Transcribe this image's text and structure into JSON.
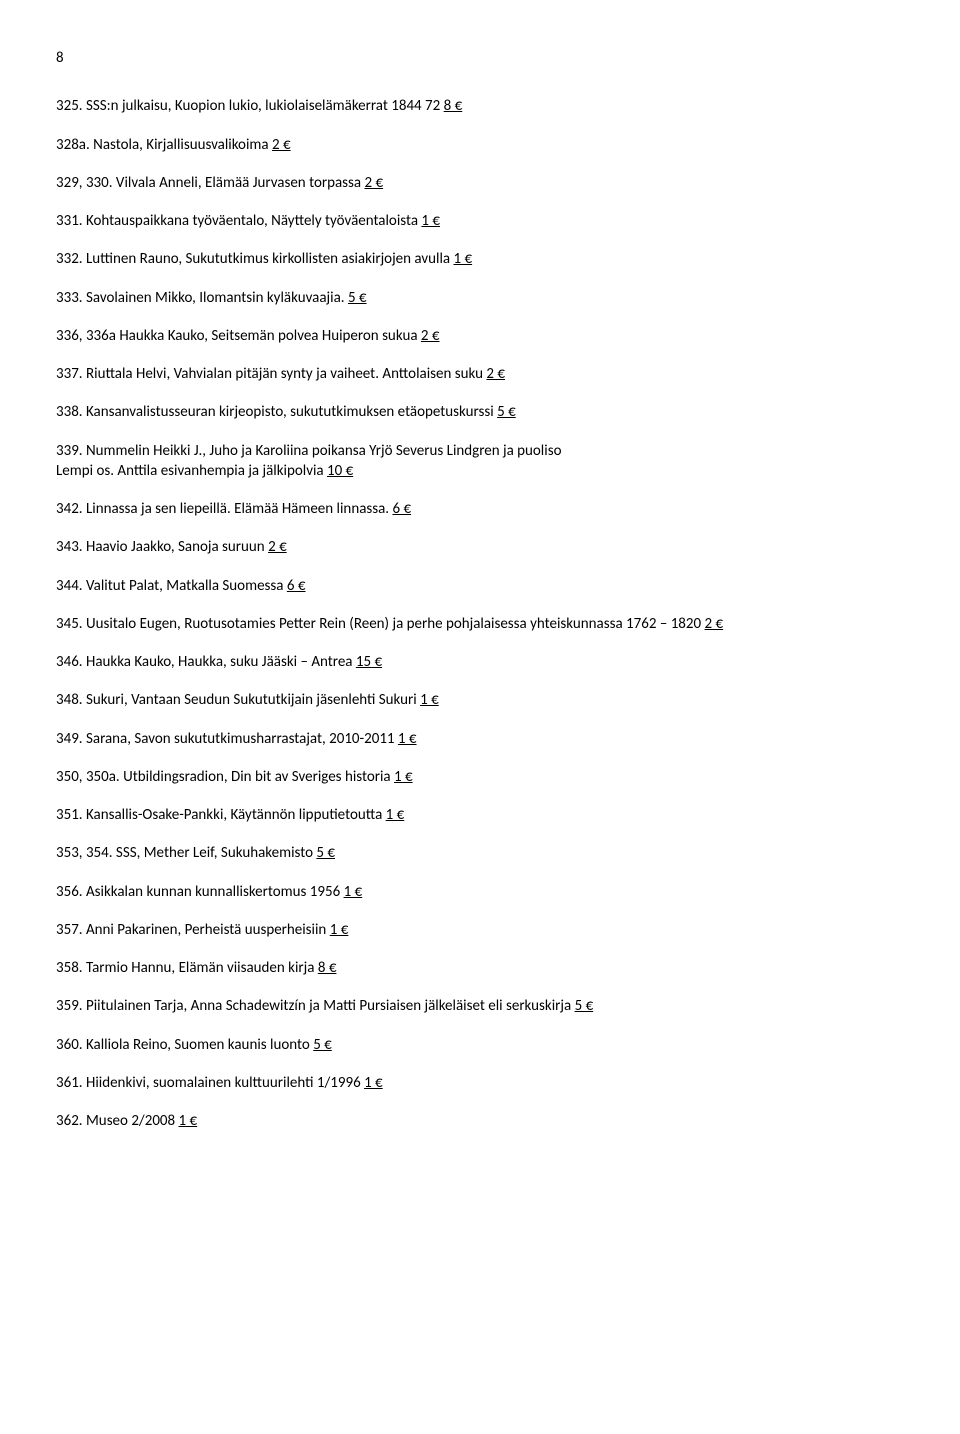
{
  "page_number": "8",
  "entries": [
    {
      "prefix": "325. SSS:n julkaisu, Kuopion lukio, lukiolaiselämäkerrat 1844 72 ",
      "price": "8 €"
    },
    {
      "prefix": "328a. Nastola, Kirjallisuusvalikoima ",
      "price": "2 €"
    },
    {
      "prefix": "329, 330. Vilvala Anneli, Elämää Jurvasen torpassa ",
      "price": "2 €"
    },
    {
      "prefix": "331. Kohtauspaikkana työväentalo, Näyttely työväentaloista ",
      "price": "1 €"
    },
    {
      "prefix": "332. Luttinen Rauno, Sukututkimus kirkollisten asiakirjojen avulla ",
      "price": "1 €"
    },
    {
      "prefix": "333. Savolainen Mikko, Ilomantsin kyläkuvaajia. ",
      "price": "5 €"
    },
    {
      "prefix": "336, 336a  Haukka Kauko, Seitsemän polvea Huiperon sukua ",
      "price": "2 €"
    },
    {
      "prefix": "337. Riuttala Helvi, Vahvialan pitäjän synty ja vaiheet. Anttolaisen suku ",
      "price": "2 €"
    },
    {
      "prefix": "338. Kansanvalistusseuran kirjeopisto, sukututkimuksen etäopetuskurssi ",
      "price": "5 €"
    },
    {
      "line1": "339. Nummelin Heikki J., Juho ja Karoliina poikansa Yrjö Severus Lindgren ja puoliso",
      "line2_prefix": "Lempi os. Anttila esivanhempia ja jälkipolvia ",
      "price": "10 €",
      "multiline": true
    },
    {
      "prefix": "342. Linnassa ja sen liepeillä. Elämää Hämeen linnassa. ",
      "price": "6 €"
    },
    {
      "prefix": "343. Haavio Jaakko, Sanoja suruun ",
      "price": "2 €"
    },
    {
      "prefix": "344. Valitut Palat, Matkalla Suomessa ",
      "price": "6 €"
    },
    {
      "prefix": "345. Uusitalo Eugen, Ruotusotamies Petter Rein (Reen) ja perhe pohjalaisessa yhteiskunnassa 1762 – 1820 ",
      "price": "2 €"
    },
    {
      "prefix": "346. Haukka Kauko, Haukka, suku Jääski – Antrea ",
      "price": "15 €"
    },
    {
      "prefix": "348. Sukuri, Vantaan Seudun Sukututkijain jäsenlehti Sukuri ",
      "price": "1 €"
    },
    {
      "prefix": "349. Sarana, Savon sukututkimusharrastajat, 2010-2011 ",
      "price": "1 €"
    },
    {
      "prefix": "350, 350a. Utbildingsradion, Din bit av Sveriges historia ",
      "price": "1 €"
    },
    {
      "prefix": "351. Kansallis-Osake-Pankki, Käytännön lipputietoutta ",
      "price": "1 €"
    },
    {
      "prefix": "353, 354. SSS, Mether Leif, Sukuhakemisto ",
      "price": "5 €"
    },
    {
      "prefix": "356. Asikkalan kunnan kunnalliskertomus 1956 ",
      "price": "1 €"
    },
    {
      "prefix": "357. Anni Pakarinen, Perheistä uusperheisiin ",
      "price": "1 €"
    },
    {
      "prefix": "358. Tarmio Hannu, Elämän viisauden kirja ",
      "price": "8 €"
    },
    {
      "prefix": "359. Piitulainen Tarja, Anna Schadewitzín ja Matti Pursiaisen jälkeläiset eli serkuskirja ",
      "price": "5 €"
    },
    {
      "prefix": "360. Kalliola Reino, Suomen kaunis luonto ",
      "price": "5 €"
    },
    {
      "prefix": "361. Hiidenkivi, suomalainen kulttuurilehti 1/1996 ",
      "price": "1 €"
    },
    {
      "prefix": "362. Museo 2/2008 ",
      "price": "1 €"
    }
  ]
}
